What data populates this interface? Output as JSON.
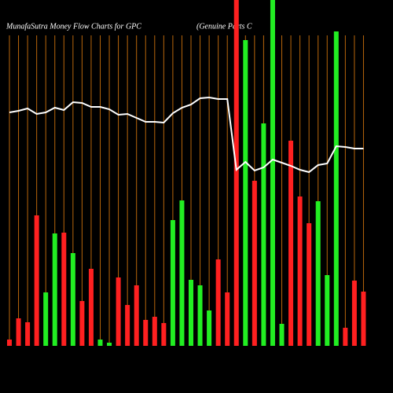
{
  "chart_data": {
    "type": "bar",
    "title": "MunafaSutra  Money Flow  Charts for GPC",
    "subtitle": "(Genuine   Parts C",
    "ylim": [
      0,
      440
    ],
    "grid_color": "#b8660b",
    "line_color": "#ffffff",
    "series": [
      {
        "name": "Money Flow",
        "values": [
          8,
          35,
          30,
          166,
          68,
          143,
          144,
          118,
          57,
          98,
          8,
          4,
          87,
          52,
          77,
          33,
          37,
          29,
          160,
          185,
          84,
          77,
          45,
          110,
          68,
          440,
          389,
          210,
          283,
          440,
          28,
          261,
          190,
          156,
          184,
          90,
          400,
          23,
          83,
          69
        ],
        "colors": [
          "#ff2020",
          "#ff2020",
          "#ff2020",
          "#ff2020",
          "#22ee22",
          "#22ee22",
          "#ff2020",
          "#22ee22",
          "#ff2020",
          "#ff2020",
          "#22ee22",
          "#22ee22",
          "#ff2020",
          "#ff2020",
          "#ff2020",
          "#ff2020",
          "#ff2020",
          "#ff2020",
          "#22ee22",
          "#22ee22",
          "#22ee22",
          "#22ee22",
          "#22ee22",
          "#ff2020",
          "#ff2020",
          "#ff2020",
          "#22ee22",
          "#ff2020",
          "#22ee22",
          "#22ee22",
          "#22ee22",
          "#ff2020",
          "#ff2020",
          "#ff2020",
          "#22ee22",
          "#22ee22",
          "#22ee22",
          "#ff2020",
          "#ff2020",
          "#ff2020"
        ]
      },
      {
        "name": "Price",
        "values": [
          297,
          299,
          302,
          295,
          297,
          303,
          300,
          310,
          309,
          304,
          304,
          301,
          294,
          295,
          290,
          285,
          285,
          284,
          296,
          303,
          307,
          315,
          316,
          314,
          314,
          224,
          234,
          223,
          227,
          237,
          233,
          229,
          224,
          221,
          230,
          232,
          254,
          253,
          251,
          251
        ]
      }
    ]
  }
}
